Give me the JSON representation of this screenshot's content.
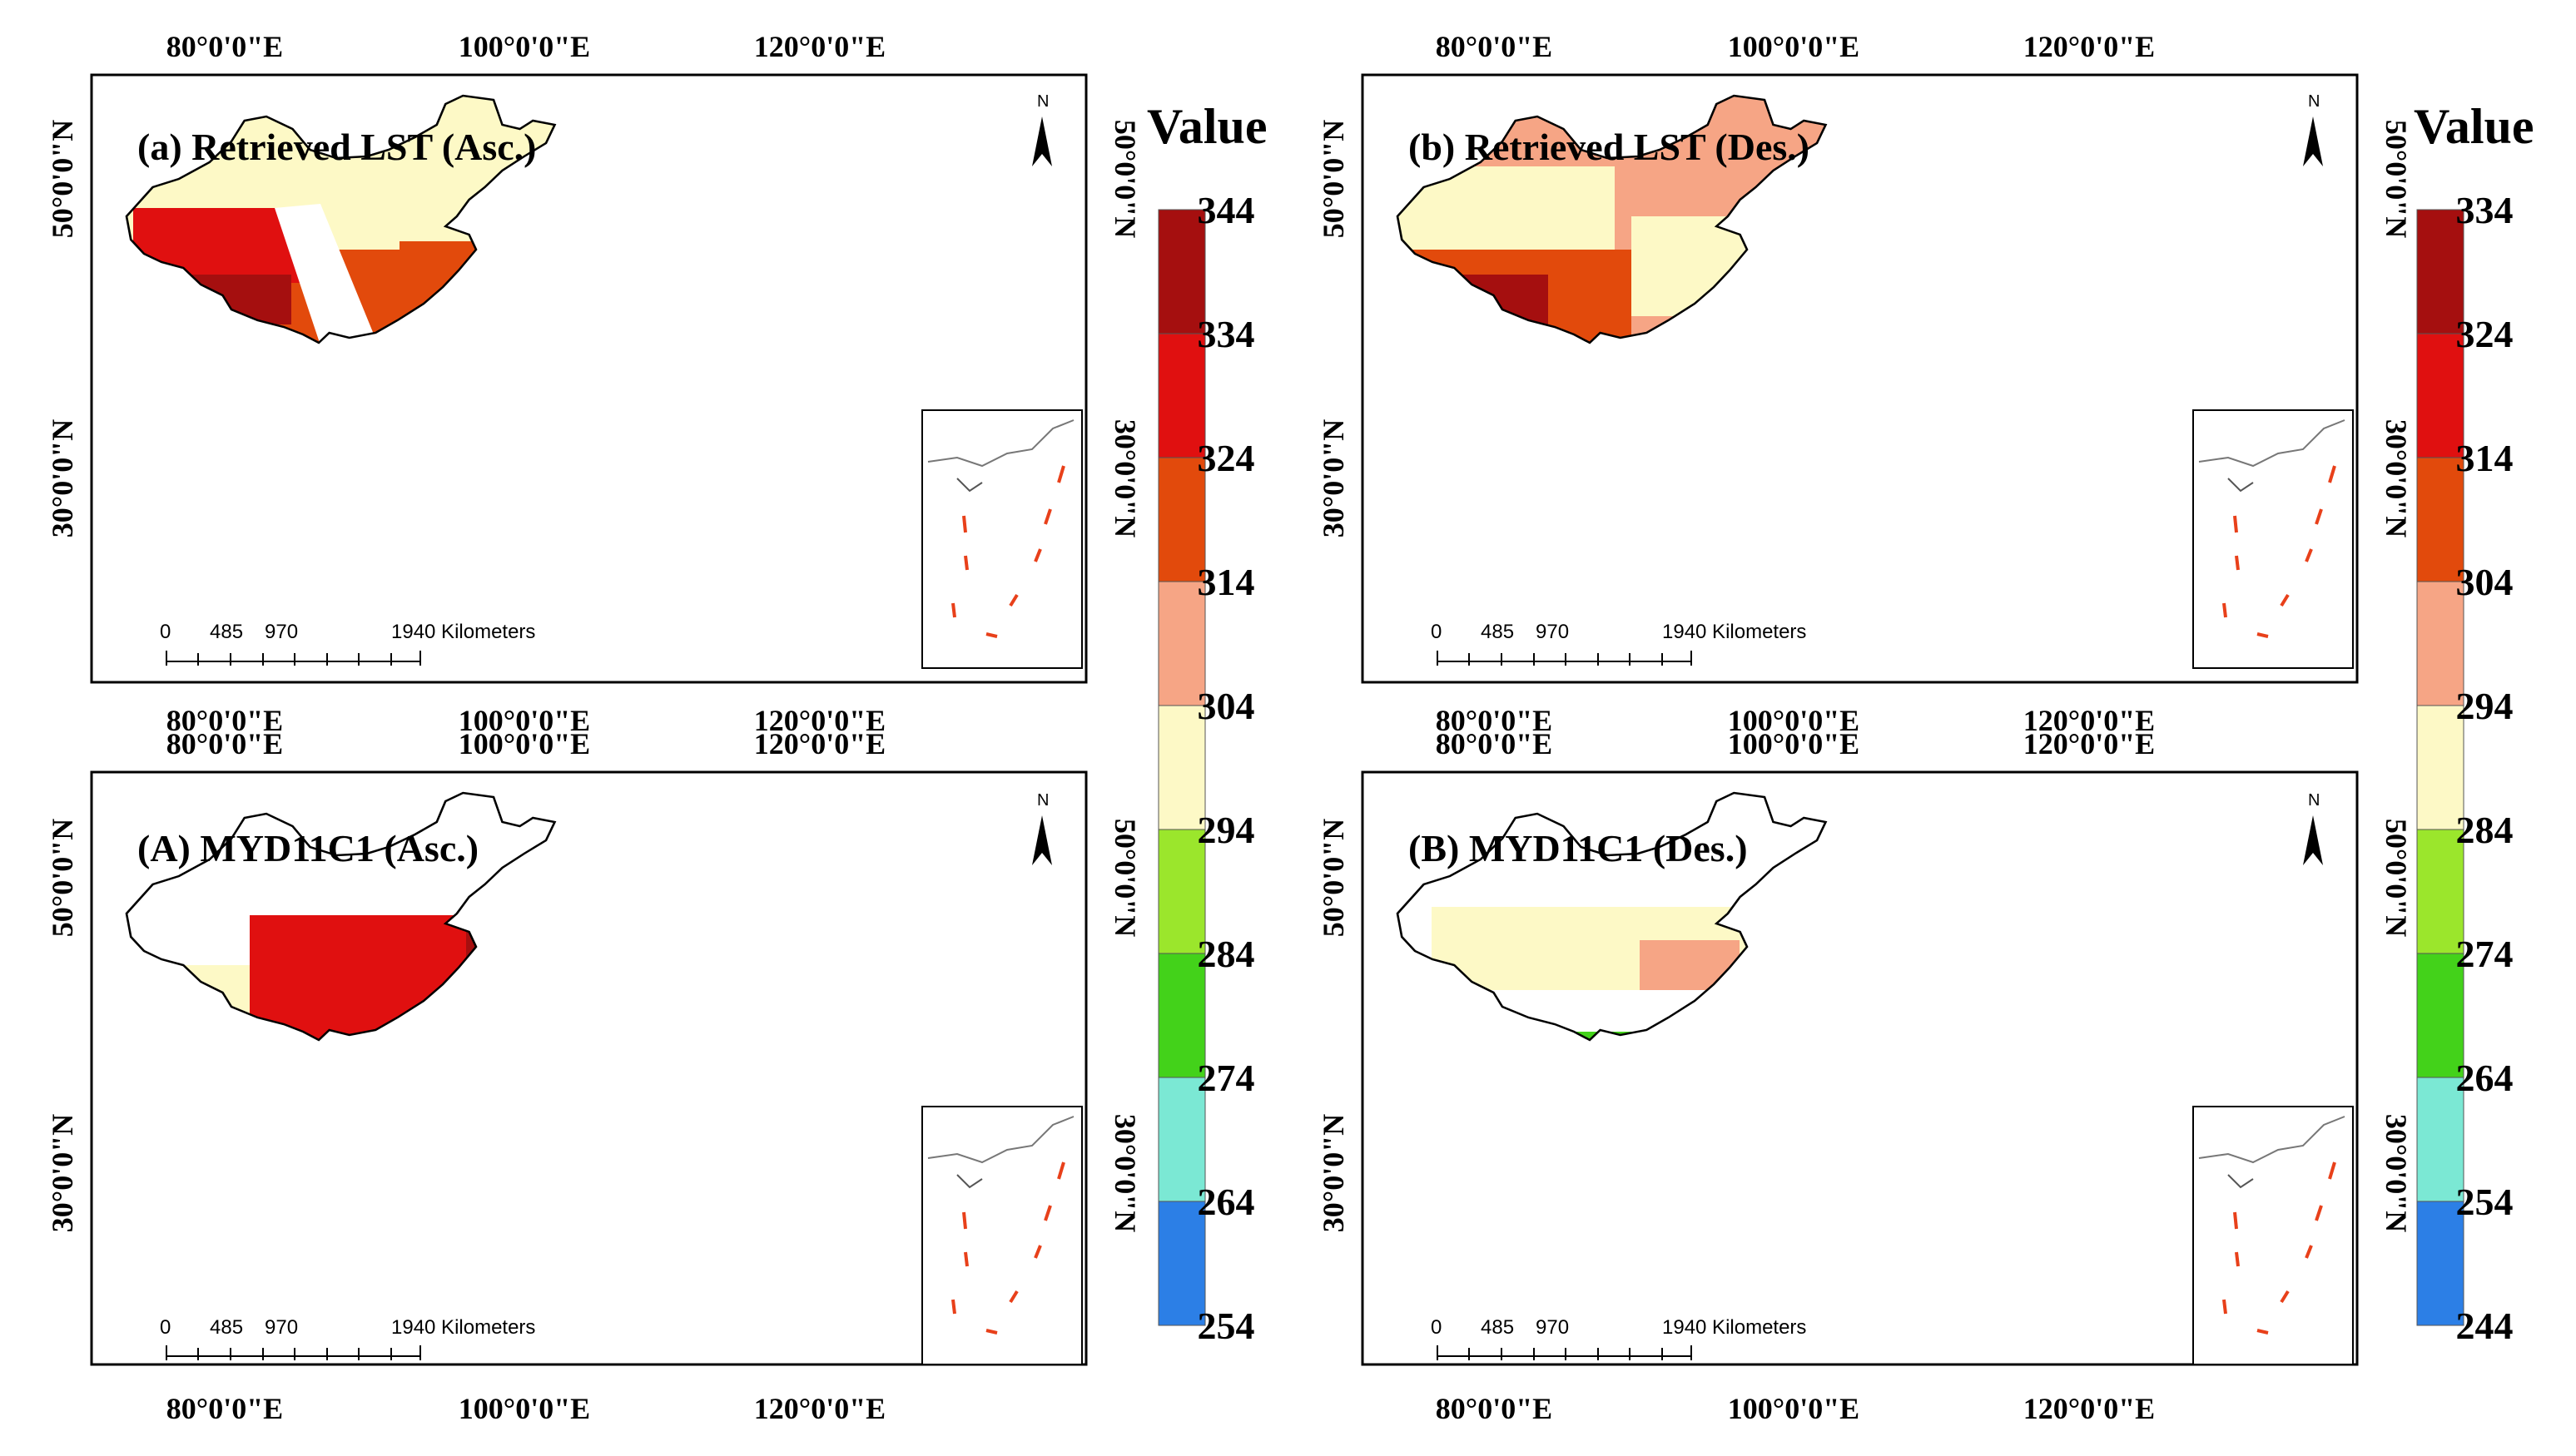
{
  "figure": {
    "lon_labels": [
      "80°0'0\"E",
      "100°0'0\"E",
      "120°0'0\"E"
    ],
    "lat_labels": [
      "50°0'0\"N",
      "30°0'0\"N"
    ],
    "north_label": "N",
    "scale_bar": {
      "labels": [
        "0",
        "485",
        "970",
        "1940 Kilometers"
      ]
    },
    "panels": [
      {
        "id": "a",
        "title": "(a) Retrieved LST (Asc.)"
      },
      {
        "id": "b",
        "title": "(b) Retrieved LST (Des.)"
      },
      {
        "id": "A",
        "title": "(A) MYD11C1  (Asc.)"
      },
      {
        "id": "B",
        "title": "(B) MYD11C1 (Des.)"
      }
    ]
  },
  "legends": [
    {
      "id": "asc",
      "title": "Value",
      "labels": [
        "344",
        "334",
        "324",
        "314",
        "304",
        "294",
        "284",
        "274",
        "264",
        "254"
      ],
      "colors": [
        "#a50f0f",
        "#e01010",
        "#e24a0c",
        "#f6a585",
        "#fdf9c6",
        "#9be62c",
        "#43d21a",
        "#7be8d4",
        "#2c7fe6"
      ]
    },
    {
      "id": "des",
      "title": "Value",
      "labels": [
        "334",
        "324",
        "314",
        "304",
        "294",
        "284",
        "274",
        "264",
        "254",
        "244"
      ],
      "colors": [
        "#a50f0f",
        "#e01010",
        "#e24a0c",
        "#f6a585",
        "#fdf9c6",
        "#9be62c",
        "#43d21a",
        "#7be8d4",
        "#2c7fe6"
      ]
    }
  ],
  "colors": {
    "cream": "#fdf9c6",
    "salmon": "#f6a585",
    "orange_red": "#e24a0c",
    "red": "#e01010",
    "dark_red": "#a50f0f",
    "light_green": "#9be62c",
    "green": "#43d21a",
    "cyan": "#7be8d4",
    "dash_red": "#e8401a"
  }
}
